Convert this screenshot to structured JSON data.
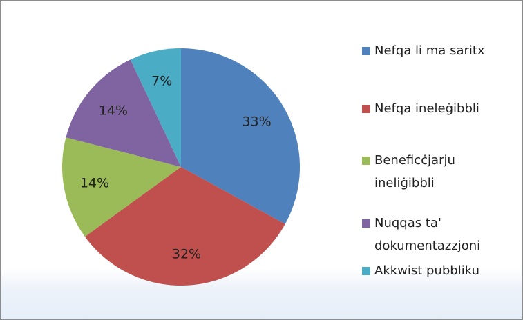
{
  "chart_data": {
    "type": "pie",
    "categories": [
      "Nefqa li ma saritx",
      "Nefqa ineleġibbli",
      "Beneficċjarju ineliġibbli",
      "Nuqqas ta' dokumentazzjoni",
      "Akkwist pubbliku"
    ],
    "values": [
      33,
      32,
      14,
      14,
      7
    ],
    "value_labels": [
      "33%",
      "32%",
      "14%",
      "14%",
      "7%"
    ],
    "colors": [
      "#4f81bd",
      "#c0504d",
      "#9bbb59",
      "#8064a2",
      "#4bacc6"
    ],
    "legend": "right"
  }
}
